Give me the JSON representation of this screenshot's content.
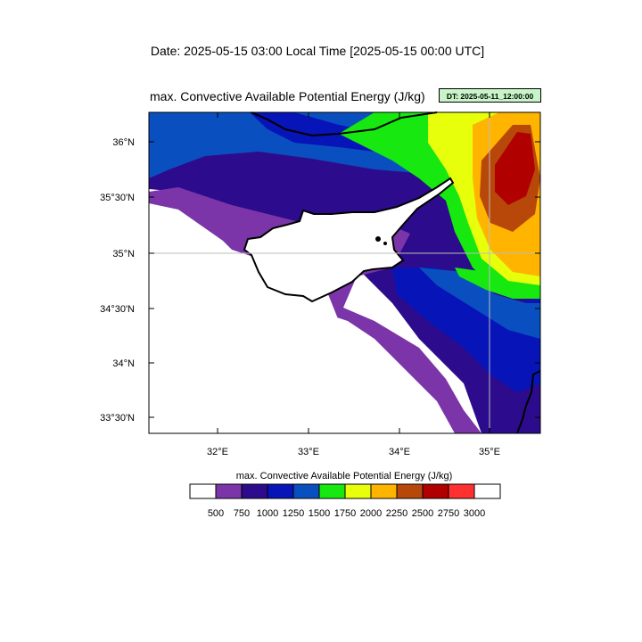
{
  "header": {
    "date_line": "Date: 2025-05-15  03:00 Local Time [2025-05-15  00:00 UTC]",
    "map_title": "max. Convective Available Potential Energy   (J/kg)",
    "dt_badge": "DT: 2025-05-11_12:00:00"
  },
  "map": {
    "lon_labels": [
      "32°E",
      "33°E",
      "34°E",
      "35°E"
    ],
    "lat_labels": [
      "36°N",
      "35°30'N",
      "35°N",
      "34°30'N",
      "34°N",
      "33°30'N"
    ],
    "landmass": "Cyprus"
  },
  "colorbar": {
    "title": "max. Convective Available Potential Energy  (J/kg)",
    "levels": [
      "500",
      "750",
      "1000",
      "1250",
      "1500",
      "1750",
      "2000",
      "2250",
      "2500",
      "2750",
      "3000"
    ],
    "colors": [
      "#ffffff",
      "#7b35a8",
      "#2c0c8c",
      "#0714b8",
      "#0a4fc0",
      "#17e80f",
      "#e7ff0a",
      "#ffb400",
      "#b8480a",
      "#b00000",
      "#ff3030",
      "#ffffff"
    ]
  }
}
